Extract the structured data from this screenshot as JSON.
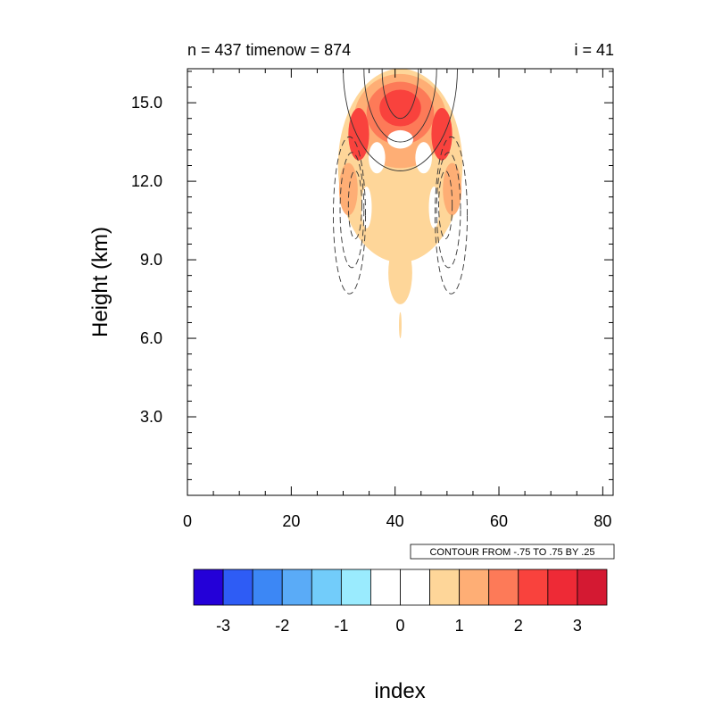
{
  "chart_data": {
    "type": "heatmap",
    "title_left": "n = 437 timenow = 874",
    "title_right": "i = 41",
    "xlabel": "index",
    "ylabel": "Height (km)",
    "xlim": [
      0,
      82
    ],
    "ylim": [
      0,
      16.3
    ],
    "x_ticks": [
      0,
      20,
      40,
      60,
      80
    ],
    "x_tick_labels": [
      "0",
      "20",
      "40",
      "60",
      "80"
    ],
    "y_ticks": [
      3,
      6,
      9,
      12,
      15
    ],
    "y_tick_labels": [
      "3.0",
      "6.0",
      "9.0",
      "12.0",
      "15.0"
    ],
    "contour_info": "CONTOUR FROM -.75 TO .75 BY .25",
    "colorbar": {
      "colors": [
        "#2400d8",
        "#2e5cf5",
        "#3c87f5",
        "#5aabf7",
        "#72ccfa",
        "#9aebfe",
        "#ffffff",
        "#ffffff",
        "#fed699",
        "#feae75",
        "#fd7a58",
        "#f9423d",
        "#ee2a36",
        "#d41932"
      ],
      "tick_labels": [
        "-3",
        "-2",
        "-1",
        "0",
        "1",
        "2",
        "3"
      ]
    },
    "filled_regions": [
      {
        "level": 1,
        "cx": 41,
        "cy": 12.6,
        "rx": 12,
        "ry": 3.7
      },
      {
        "level": 1,
        "cx": 41,
        "cy": 8.5,
        "rx": 2.3,
        "ry": 1.2
      },
      {
        "level": 1,
        "cx": 41,
        "cy": 6.5,
        "rx": 0.25,
        "ry": 0.5
      },
      {
        "level": 2,
        "cx": 41,
        "cy": 14.3,
        "rx": 9,
        "ry": 1.8
      },
      {
        "level": 3,
        "cx": 41,
        "cy": 14.6,
        "rx": 6.5,
        "ry": 1.2
      },
      {
        "level": 4,
        "cx": 33,
        "cy": 13.8,
        "rx": 2,
        "ry": 1.0
      },
      {
        "level": 4,
        "cx": 49,
        "cy": 13.8,
        "rx": 2,
        "ry": 1.0
      },
      {
        "level": 4,
        "cx": 41,
        "cy": 14.8,
        "rx": 4,
        "ry": 0.7
      },
      {
        "level": 2,
        "cx": 31,
        "cy": 11.7,
        "rx": 1.8,
        "ry": 1.0
      },
      {
        "level": 2,
        "cx": 51,
        "cy": 11.7,
        "rx": 1.8,
        "ry": 1.0
      }
    ],
    "contours": [
      {
        "value": 0.25,
        "dashed": false,
        "cx": 41,
        "cy": 16.3,
        "rx": 11,
        "ry": 3.9
      },
      {
        "value": 0.5,
        "dashed": false,
        "cx": 41,
        "cy": 16.3,
        "rx": 7,
        "ry": 2.8
      },
      {
        "value": 0.75,
        "dashed": false,
        "cx": 41,
        "cy": 16.3,
        "rx": 3.5,
        "ry": 1.9
      },
      {
        "value": -0.25,
        "dashed": true,
        "cx": 31.2,
        "cy": 10.7,
        "rx": 3.1,
        "ry": 3.0
      },
      {
        "value": -0.5,
        "dashed": true,
        "cx": 31.7,
        "cy": 10.9,
        "rx": 2.3,
        "ry": 2.2
      },
      {
        "value": -0.75,
        "dashed": true,
        "cx": 32.3,
        "cy": 11.1,
        "rx": 1.3,
        "ry": 1.3
      },
      {
        "value": -0.25,
        "dashed": true,
        "cx": 50.8,
        "cy": 10.7,
        "rx": 3.1,
        "ry": 3.0
      },
      {
        "value": -0.5,
        "dashed": true,
        "cx": 50.3,
        "cy": 10.9,
        "rx": 2.3,
        "ry": 2.2
      },
      {
        "value": -0.75,
        "dashed": true,
        "cx": 49.7,
        "cy": 11.1,
        "rx": 1.3,
        "ry": 1.3
      }
    ]
  }
}
